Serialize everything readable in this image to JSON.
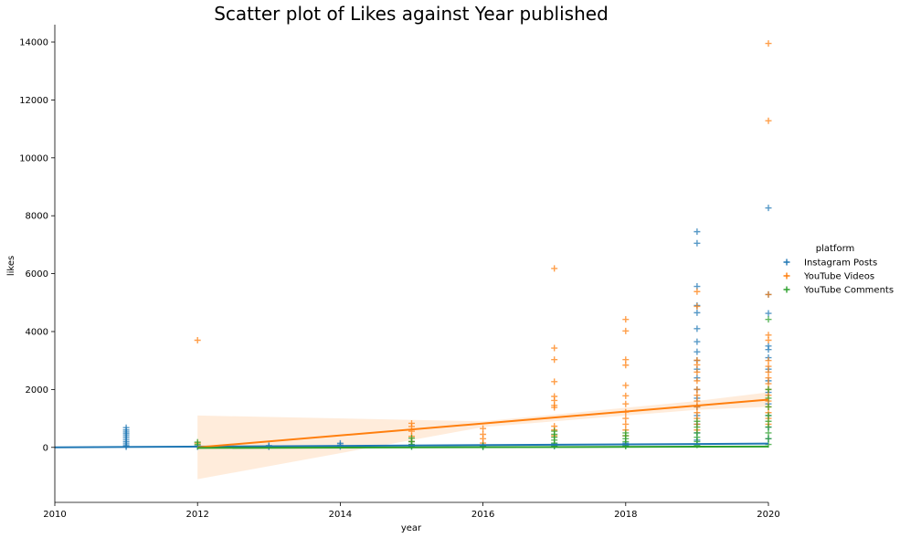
{
  "chart_data": {
    "type": "scatter",
    "title": "Scatter plot of Likes against Year published",
    "xlabel": "year",
    "ylabel": "likes",
    "xlim": [
      2010,
      2020
    ],
    "ylim": [
      -1900,
      14600
    ],
    "xticks": [
      2010,
      2012,
      2014,
      2016,
      2018,
      2020
    ],
    "yticks": [
      0,
      2000,
      4000,
      6000,
      8000,
      10000,
      12000,
      14000
    ],
    "grid": false,
    "legend": {
      "title": "platform",
      "placement": "center-right"
    },
    "series": [
      {
        "name": "Instagram Posts",
        "color": "#1f77b4",
        "marker": "+",
        "points": [
          [
            2011,
            680
          ],
          [
            2011,
            600
          ],
          [
            2011,
            530
          ],
          [
            2011,
            470
          ],
          [
            2011,
            400
          ],
          [
            2011,
            330
          ],
          [
            2011,
            260
          ],
          [
            2011,
            190
          ],
          [
            2011,
            120
          ],
          [
            2011,
            60
          ],
          [
            2011,
            20
          ],
          [
            2012,
            50
          ],
          [
            2012,
            20
          ],
          [
            2013,
            60
          ],
          [
            2013,
            20
          ],
          [
            2014,
            140
          ],
          [
            2014,
            80
          ],
          [
            2014,
            30
          ],
          [
            2015,
            200
          ],
          [
            2015,
            90
          ],
          [
            2015,
            30
          ],
          [
            2016,
            60
          ],
          [
            2016,
            20
          ],
          [
            2017,
            120
          ],
          [
            2017,
            40
          ],
          [
            2018,
            150
          ],
          [
            2018,
            60
          ],
          [
            2019,
            7450
          ],
          [
            2019,
            7050
          ],
          [
            2019,
            5560
          ],
          [
            2019,
            4900
          ],
          [
            2019,
            4650
          ],
          [
            2019,
            4100
          ],
          [
            2019,
            3650
          ],
          [
            2019,
            3300
          ],
          [
            2019,
            3000
          ],
          [
            2019,
            2700
          ],
          [
            2019,
            2400
          ],
          [
            2019,
            2000
          ],
          [
            2019,
            1700
          ],
          [
            2019,
            1400
          ],
          [
            2019,
            1100
          ],
          [
            2019,
            800
          ],
          [
            2019,
            500
          ],
          [
            2019,
            250
          ],
          [
            2020,
            8270
          ],
          [
            2020,
            5280
          ],
          [
            2020,
            4630
          ],
          [
            2020,
            3500
          ],
          [
            2020,
            3380
          ],
          [
            2020,
            3100
          ],
          [
            2020,
            2700
          ],
          [
            2020,
            2300
          ],
          [
            2020,
            1900
          ],
          [
            2020,
            1500
          ],
          [
            2020,
            1100
          ],
          [
            2020,
            700
          ],
          [
            2020,
            300
          ]
        ],
        "trend": {
          "x": [
            2010,
            2020
          ],
          "y": [
            0,
            130
          ]
        }
      },
      {
        "name": "YouTube Videos",
        "color": "#ff7f0e",
        "marker": "+",
        "points": [
          [
            2012,
            3700
          ],
          [
            2012,
            150
          ],
          [
            2015,
            830
          ],
          [
            2015,
            720
          ],
          [
            2015,
            560
          ],
          [
            2015,
            380
          ],
          [
            2015,
            200
          ],
          [
            2016,
            650
          ],
          [
            2016,
            450
          ],
          [
            2016,
            300
          ],
          [
            2016,
            150
          ],
          [
            2017,
            6180
          ],
          [
            2017,
            3430
          ],
          [
            2017,
            3030
          ],
          [
            2017,
            2270
          ],
          [
            2017,
            1760
          ],
          [
            2017,
            1620
          ],
          [
            2017,
            1450
          ],
          [
            2017,
            1380
          ],
          [
            2017,
            730
          ],
          [
            2017,
            600
          ],
          [
            2017,
            400
          ],
          [
            2018,
            4420
          ],
          [
            2018,
            4020
          ],
          [
            2018,
            3030
          ],
          [
            2018,
            2840
          ],
          [
            2018,
            2140
          ],
          [
            2018,
            1780
          ],
          [
            2018,
            1500
          ],
          [
            2018,
            1220
          ],
          [
            2018,
            1000
          ],
          [
            2018,
            800
          ],
          [
            2018,
            600
          ],
          [
            2018,
            400
          ],
          [
            2019,
            5380
          ],
          [
            2019,
            4870
          ],
          [
            2019,
            3010
          ],
          [
            2019,
            2850
          ],
          [
            2019,
            2600
          ],
          [
            2019,
            2300
          ],
          [
            2019,
            2000
          ],
          [
            2019,
            1800
          ],
          [
            2019,
            1600
          ],
          [
            2019,
            1400
          ],
          [
            2019,
            1200
          ],
          [
            2019,
            1000
          ],
          [
            2019,
            800
          ],
          [
            2019,
            600
          ],
          [
            2020,
            13950
          ],
          [
            2020,
            11280
          ],
          [
            2020,
            5280
          ],
          [
            2020,
            3880
          ],
          [
            2020,
            3700
          ],
          [
            2020,
            3000
          ],
          [
            2020,
            2800
          ],
          [
            2020,
            2600
          ],
          [
            2020,
            2400
          ],
          [
            2020,
            2200
          ],
          [
            2020,
            2000
          ],
          [
            2020,
            1800
          ],
          [
            2020,
            1600
          ],
          [
            2020,
            1400
          ],
          [
            2020,
            1200
          ],
          [
            2020,
            1000
          ],
          [
            2020,
            800
          ]
        ],
        "trend": {
          "x": [
            2012,
            2020
          ],
          "y": [
            0,
            1650
          ]
        },
        "band": {
          "x": [
            2012,
            2016,
            2019,
            2020
          ],
          "upper": [
            1100,
            900,
            1600,
            1900
          ],
          "lower": [
            -1100,
            700,
            1300,
            1400
          ]
        }
      },
      {
        "name": "YouTube Comments",
        "color": "#2ca02c",
        "marker": "+",
        "points": [
          [
            2012,
            180
          ],
          [
            2012,
            100
          ],
          [
            2012,
            40
          ],
          [
            2015,
            320
          ],
          [
            2015,
            200
          ],
          [
            2015,
            100
          ],
          [
            2015,
            30
          ],
          [
            2016,
            60
          ],
          [
            2016,
            20
          ],
          [
            2017,
            560
          ],
          [
            2017,
            450
          ],
          [
            2017,
            350
          ],
          [
            2017,
            250
          ],
          [
            2017,
            150
          ],
          [
            2017,
            60
          ],
          [
            2018,
            500
          ],
          [
            2018,
            400
          ],
          [
            2018,
            300
          ],
          [
            2018,
            200
          ],
          [
            2018,
            100
          ],
          [
            2018,
            40
          ],
          [
            2019,
            900
          ],
          [
            2019,
            700
          ],
          [
            2019,
            500
          ],
          [
            2019,
            350
          ],
          [
            2019,
            200
          ],
          [
            2019,
            80
          ],
          [
            2020,
            4420
          ],
          [
            2020,
            2000
          ],
          [
            2020,
            1700
          ],
          [
            2020,
            1400
          ],
          [
            2020,
            1100
          ],
          [
            2020,
            900
          ],
          [
            2020,
            700
          ],
          [
            2020,
            500
          ],
          [
            2020,
            300
          ],
          [
            2020,
            100
          ]
        ],
        "trend": {
          "x": [
            2012,
            2020
          ],
          "y": [
            -20,
            30
          ]
        }
      }
    ]
  }
}
